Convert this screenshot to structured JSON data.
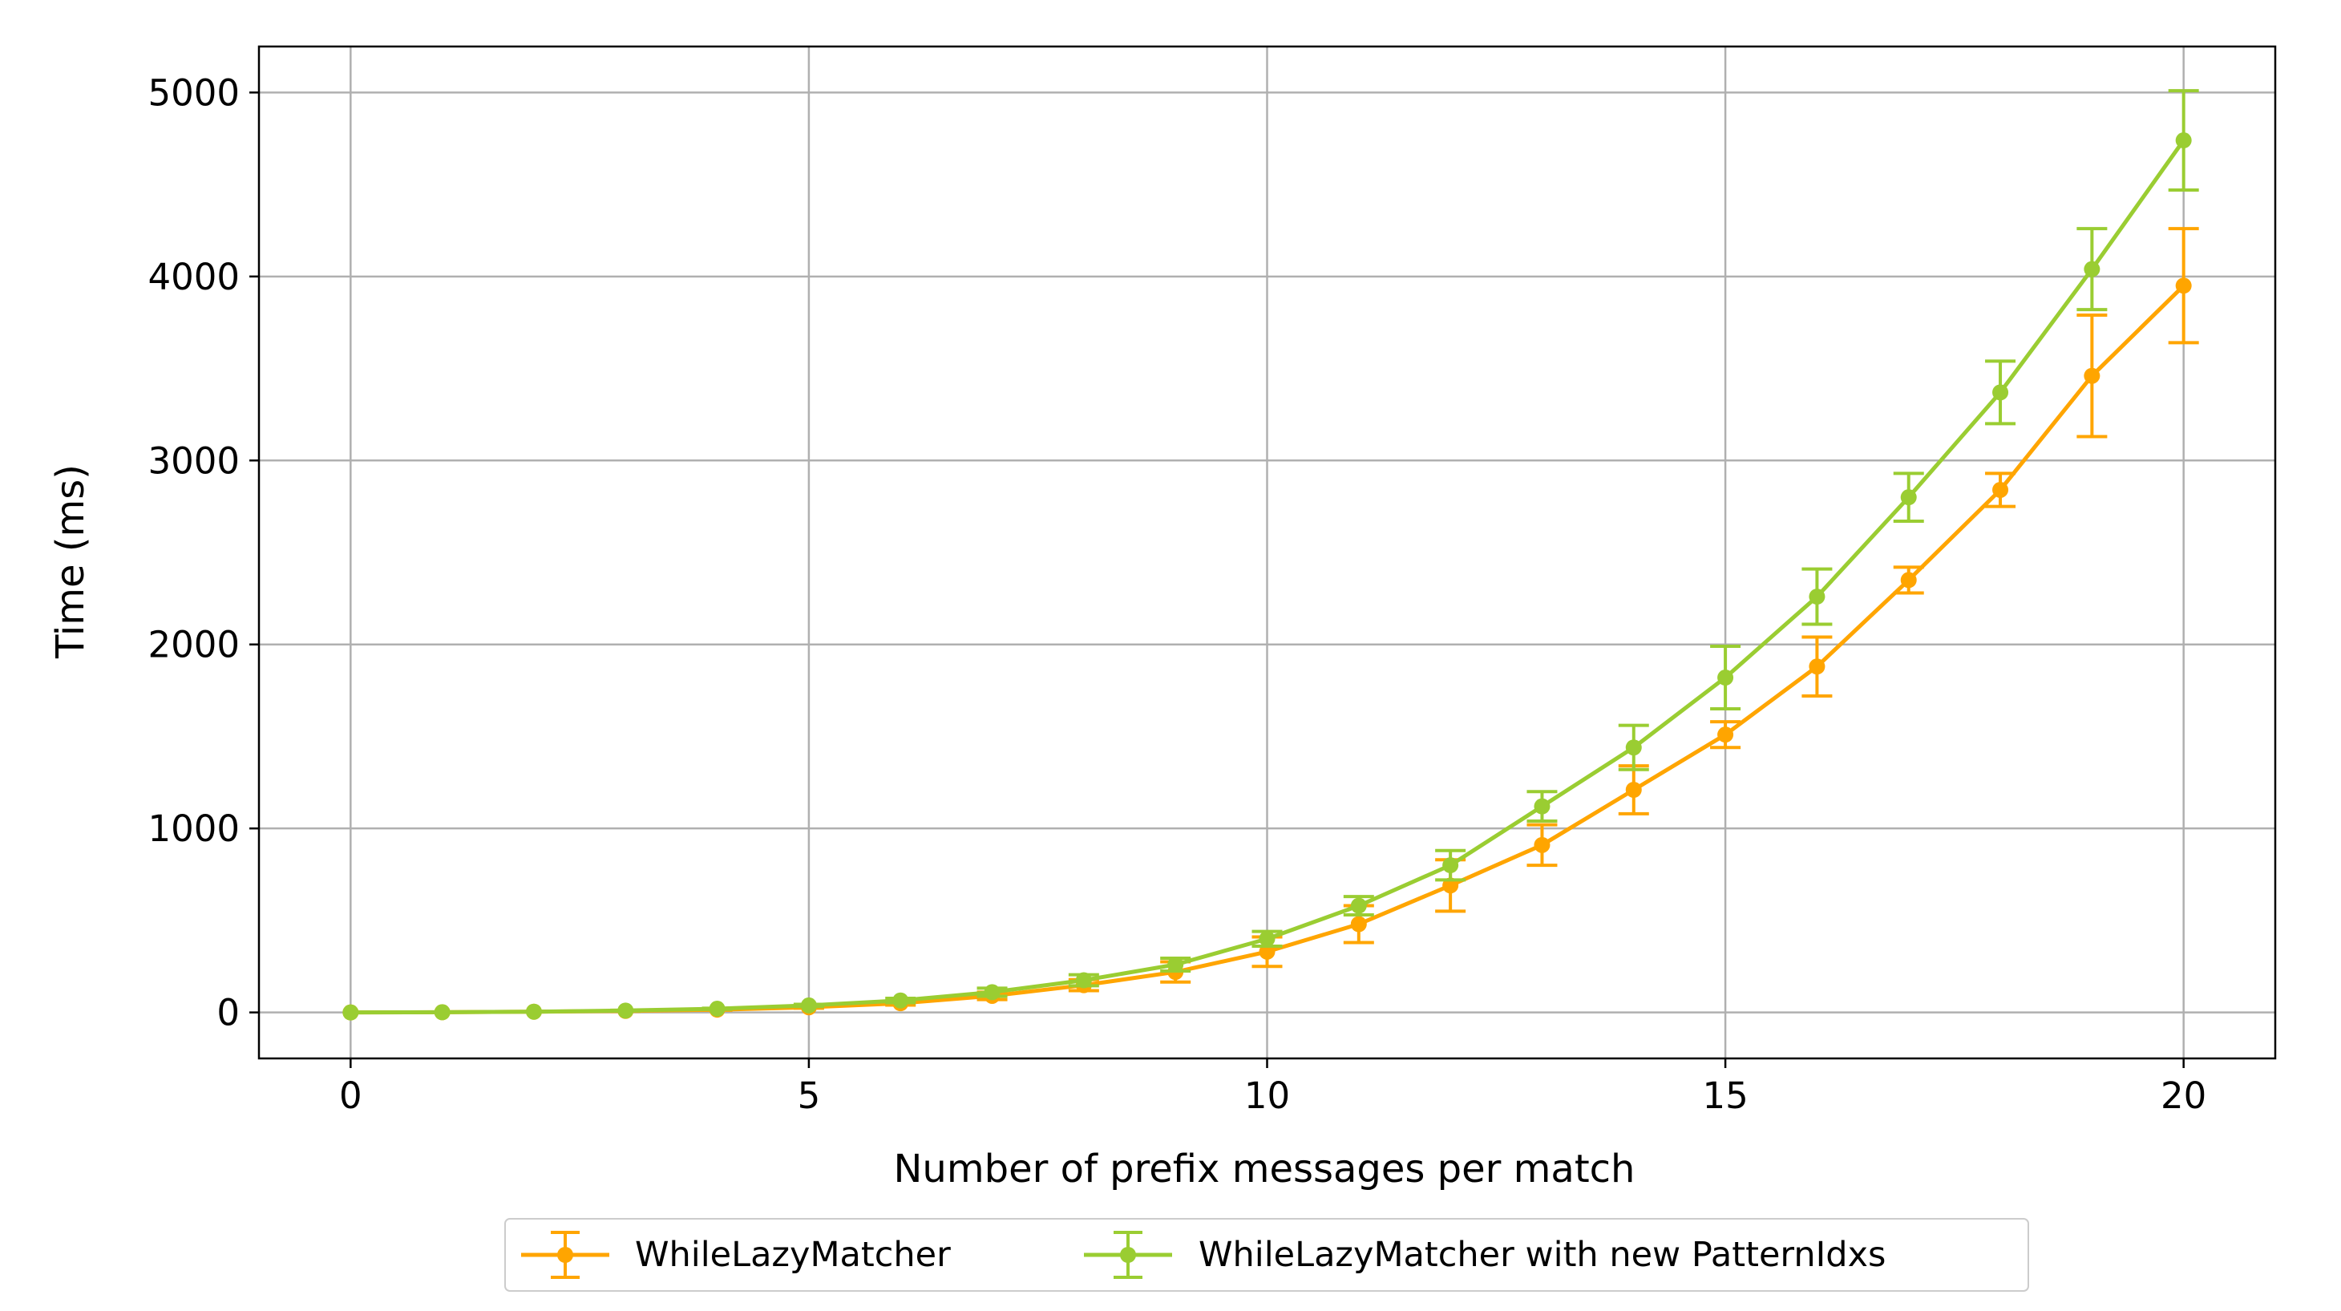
{
  "colors": {
    "series_1": "#FFA500",
    "series_2": "#9ACD32",
    "grid": "#b0b0b0"
  },
  "chart_data": {
    "type": "line",
    "title": "",
    "xlabel": "Number of prefix messages per match",
    "ylabel": "Time (ms)",
    "xlim": [
      -1,
      21
    ],
    "ylim": [
      -250,
      5250
    ],
    "x_ticks": [
      0,
      5,
      10,
      15,
      20
    ],
    "y_ticks": [
      0,
      1000,
      2000,
      3000,
      4000,
      5000
    ],
    "grid": true,
    "legend_placement": "below-center",
    "x": [
      0,
      1,
      2,
      3,
      4,
      5,
      6,
      7,
      8,
      9,
      10,
      11,
      12,
      13,
      14,
      15,
      16,
      17,
      18,
      19,
      20
    ],
    "series": [
      {
        "name": "WhileLazyMatcher",
        "color": "#FFA500",
        "values": [
          0,
          1,
          4,
          8,
          15,
          28,
          50,
          90,
          148,
          220,
          330,
          480,
          690,
          910,
          1210,
          1510,
          1880,
          2350,
          2840,
          3460,
          3950
        ],
        "errors": [
          0,
          0,
          1,
          2,
          3,
          5,
          10,
          20,
          30,
          55,
          80,
          100,
          140,
          110,
          130,
          70,
          160,
          70,
          90,
          330,
          310
        ]
      },
      {
        "name": "WhileLazyMatcher with new PatternIdxs",
        "color": "#9ACD32",
        "values": [
          0,
          1,
          4,
          10,
          20,
          38,
          65,
          110,
          175,
          260,
          400,
          580,
          800,
          1120,
          1440,
          1820,
          2260,
          2800,
          3370,
          4040,
          4740
        ],
        "errors": [
          0,
          0,
          1,
          2,
          3,
          6,
          12,
          22,
          30,
          35,
          40,
          50,
          80,
          80,
          120,
          170,
          150,
          130,
          170,
          220,
          270
        ]
      }
    ]
  }
}
